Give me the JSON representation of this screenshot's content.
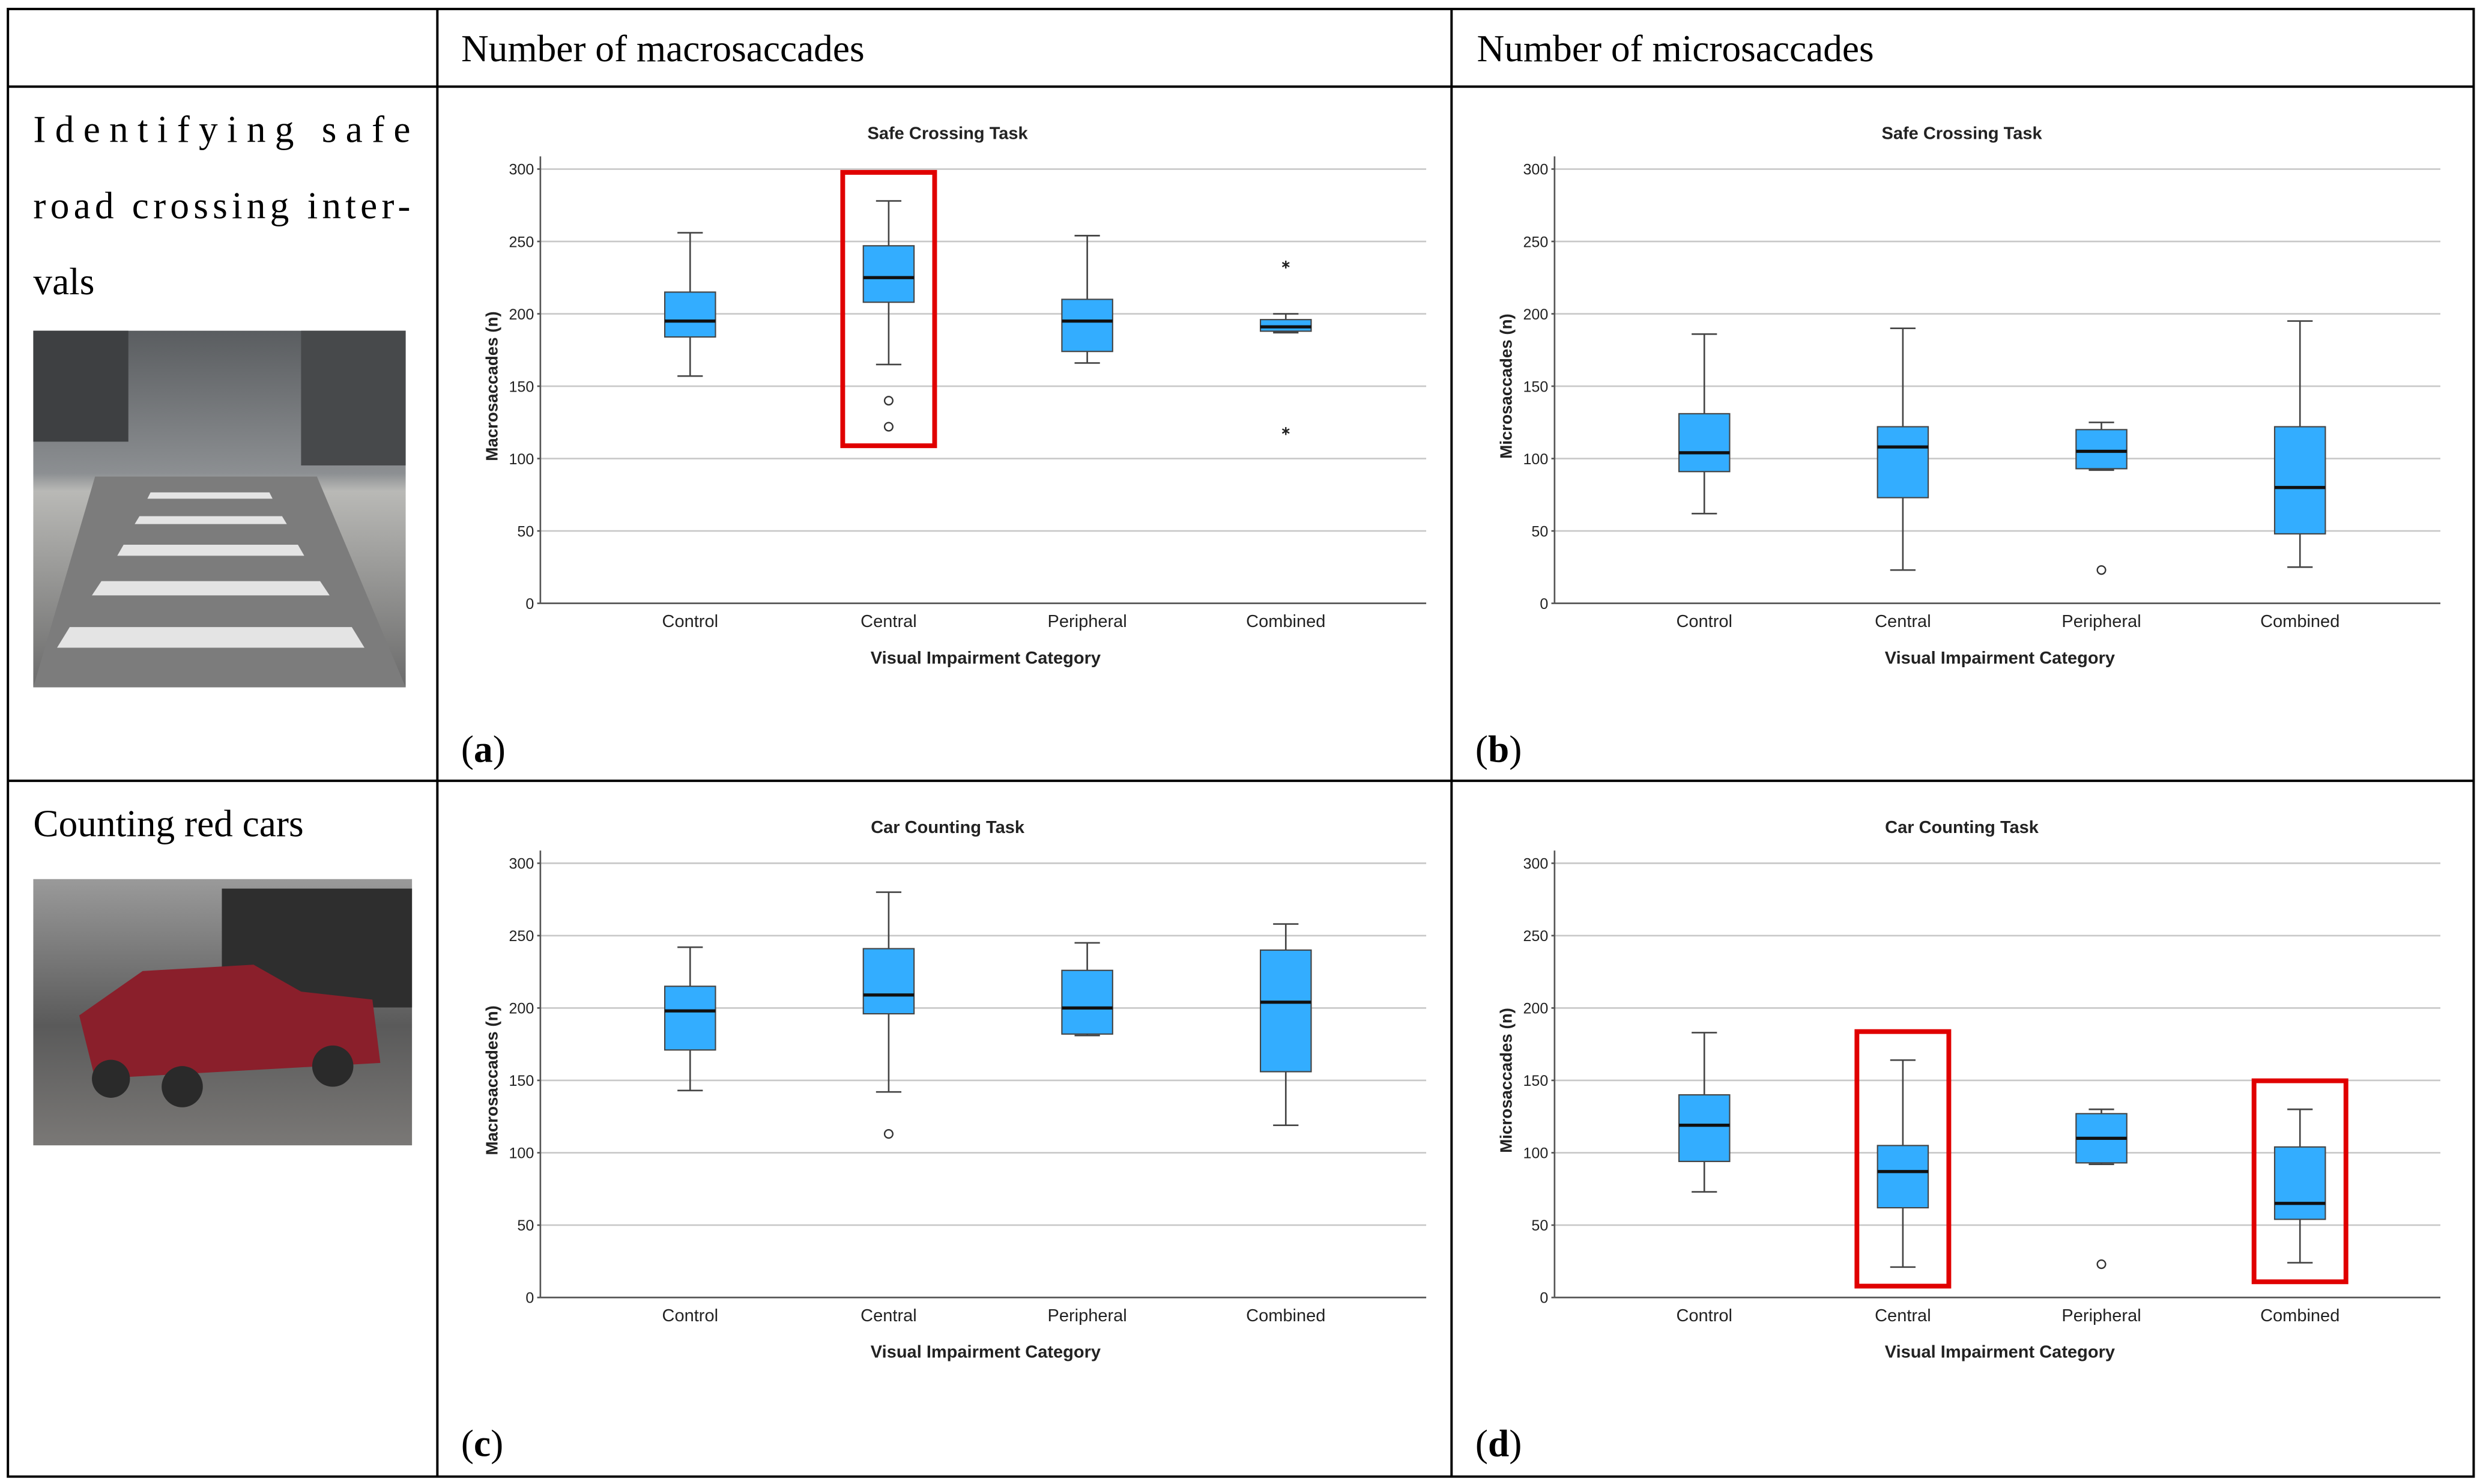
{
  "header": {
    "columns": [
      "Number of macrosaccades",
      "Number of microsaccades"
    ]
  },
  "rows": [
    {
      "task_lines": [
        "Identifying safe",
        "road crossing inter-",
        "vals"
      ],
      "charts": [
        {
          "type": "box",
          "panel": "(a)",
          "title": "Safe Crossing Task",
          "xlabel": "Visual Impairment Category",
          "ylabel": "Macrosaccades (n)",
          "categories": [
            "Control",
            "Central",
            "Peripheral",
            "Combined"
          ],
          "color": "#33adff",
          "ylim": [
            0,
            300
          ],
          "yticks": [
            0,
            50,
            100,
            150,
            200,
            250,
            300
          ],
          "grid": true,
          "highlight": [
            1
          ],
          "boxes": [
            {
              "min": 157,
              "q1": 184,
              "median": 195,
              "q3": 215,
              "max": 256,
              "outliers": [],
              "extremes": []
            },
            {
              "min": 165,
              "q1": 208,
              "median": 225,
              "q3": 247,
              "max": 278,
              "outliers": [
                140,
                122
              ],
              "extremes": []
            },
            {
              "min": 166,
              "q1": 174,
              "median": 195,
              "q3": 210,
              "max": 254,
              "outliers": [],
              "extremes": []
            },
            {
              "min": 187,
              "q1": 188,
              "median": 191,
              "q3": 196,
              "max": 200,
              "outliers": [],
              "extremes": [
                234,
                119
              ]
            }
          ]
        },
        {
          "type": "box",
          "panel": "(b)",
          "title": "Safe Crossing Task",
          "xlabel": "Visual Impairment Category",
          "ylabel": "Microsaccades (n)",
          "categories": [
            "Control",
            "Central",
            "Peripheral",
            "Combined"
          ],
          "color": "#33adff",
          "ylim": [
            0,
            300
          ],
          "yticks": [
            0,
            50,
            100,
            150,
            200,
            250,
            300
          ],
          "grid": true,
          "highlight": [],
          "boxes": [
            {
              "min": 62,
              "q1": 91,
              "median": 104,
              "q3": 131,
              "max": 186,
              "outliers": [],
              "extremes": []
            },
            {
              "min": 23,
              "q1": 73,
              "median": 108,
              "q3": 122,
              "max": 190,
              "outliers": [],
              "extremes": []
            },
            {
              "min": 92,
              "q1": 93,
              "median": 105,
              "q3": 120,
              "max": 125,
              "outliers": [
                23
              ],
              "extremes": []
            },
            {
              "min": 25,
              "q1": 48,
              "median": 80,
              "q3": 122,
              "max": 195,
              "outliers": [],
              "extremes": []
            }
          ]
        }
      ]
    },
    {
      "task_lines": [
        "Counting red cars"
      ],
      "charts": [
        {
          "type": "box",
          "panel": "(c)",
          "title": "Car Counting Task",
          "xlabel": "Visual Impairment Category",
          "ylabel": "Macrosaccades (n)",
          "categories": [
            "Control",
            "Central",
            "Peripheral",
            "Combined"
          ],
          "color": "#33adff",
          "ylim": [
            0,
            300
          ],
          "yticks": [
            0,
            50,
            100,
            150,
            200,
            250,
            300
          ],
          "grid": true,
          "highlight": [],
          "boxes": [
            {
              "min": 143,
              "q1": 171,
              "median": 198,
              "q3": 215,
              "max": 242,
              "outliers": [],
              "extremes": []
            },
            {
              "min": 142,
              "q1": 196,
              "median": 209,
              "q3": 241,
              "max": 280,
              "outliers": [
                113
              ],
              "extremes": []
            },
            {
              "min": 181,
              "q1": 182,
              "median": 200,
              "q3": 226,
              "max": 245,
              "outliers": [],
              "extremes": []
            },
            {
              "min": 119,
              "q1": 156,
              "median": 204,
              "q3": 240,
              "max": 258,
              "outliers": [],
              "extremes": []
            }
          ]
        },
        {
          "type": "box",
          "panel": "(d)",
          "title": "Car Counting Task",
          "xlabel": "Visual Impairment Category",
          "ylabel": "Microsaccades (n)",
          "categories": [
            "Control",
            "Central",
            "Peripheral",
            "Combined"
          ],
          "color": "#33adff",
          "ylim": [
            0,
            300
          ],
          "yticks": [
            0,
            50,
            100,
            150,
            200,
            250,
            300
          ],
          "grid": true,
          "highlight": [
            1,
            3
          ],
          "boxes": [
            {
              "min": 73,
              "q1": 94,
              "median": 119,
              "q3": 140,
              "max": 183,
              "outliers": [],
              "extremes": []
            },
            {
              "min": 21,
              "q1": 62,
              "median": 87,
              "q3": 105,
              "max": 164,
              "outliers": [],
              "extremes": []
            },
            {
              "min": 92,
              "q1": 93,
              "median": 110,
              "q3": 127,
              "max": 130,
              "outliers": [
                23
              ],
              "extremes": []
            },
            {
              "min": 24,
              "q1": 54,
              "median": 65,
              "q3": 104,
              "max": 130,
              "outliers": [],
              "extremes": []
            }
          ]
        }
      ]
    }
  ]
}
